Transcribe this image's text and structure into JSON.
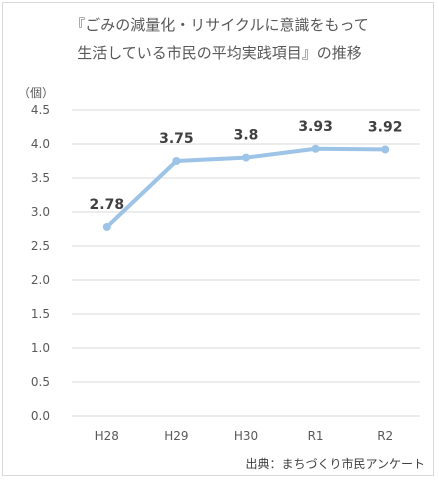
{
  "chart_data": {
    "type": "line",
    "title_line1": "『ごみの減量化・リサイクルに意識をもって",
    "title_line2": "生活している市民の平均実践項目』の推移",
    "ylabel": "（個）",
    "categories": [
      "H28",
      "H29",
      "H30",
      "R1",
      "R2"
    ],
    "series": [
      {
        "values": [
          2.78,
          3.75,
          3.8,
          3.93,
          3.92
        ]
      }
    ],
    "data_labels": [
      "2.78",
      "3.75",
      "3.8",
      "3.93",
      "3.92"
    ],
    "ylim": [
      0,
      4.5
    ],
    "yticks": [
      "0.0",
      "0.5",
      "1.0",
      "1.5",
      "2.0",
      "2.5",
      "3.0",
      "3.5",
      "4.0",
      "4.5"
    ],
    "grid": true,
    "legend": "none",
    "line_color": "#9dc3e6",
    "grid_color": "#d9d9d9",
    "source_note": "出典：まちづくり市民アンケート"
  }
}
